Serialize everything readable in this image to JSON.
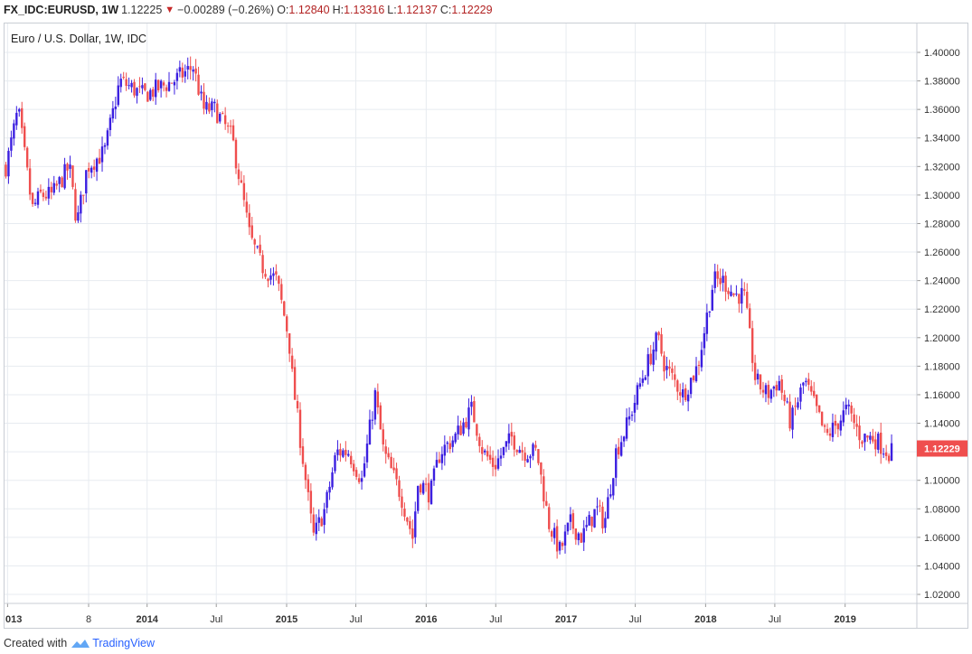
{
  "header": {
    "symbol": "FX_IDC:EURUSD, 1W",
    "last": "1.12225",
    "change": "−0.00289 (−0.26%)",
    "o_label": "O:",
    "o_value": "1.12840",
    "h_label": "H:",
    "h_value": "1.13316",
    "l_label": "L:",
    "l_value": "1.12137",
    "c_label": "C:",
    "c_value": "1.12229"
  },
  "footer": {
    "created_with": "Created with",
    "brand": "TradingView"
  },
  "colors": {
    "up": "#3b1fe0",
    "down": "#ef4e4e",
    "grid": "#e7ebf0",
    "price_tag": "#ef4e4e"
  },
  "chart_data": {
    "type": "candlestick",
    "title": "Euro / U.S. Dollar, 1W, IDC",
    "ylim": [
      1.01,
      1.41
    ],
    "y_ticks": [
      "1.40000",
      "1.38000",
      "1.36000",
      "1.34000",
      "1.32000",
      "1.30000",
      "1.28000",
      "1.26000",
      "1.24000",
      "1.22000",
      "1.20000",
      "1.18000",
      "1.16000",
      "1.14000",
      "1.12000",
      "1.10000",
      "1.08000",
      "1.06000",
      "1.04000",
      "1.02000"
    ],
    "x_tick_labels": [
      "013",
      "8",
      "2014",
      "Jul",
      "2015",
      "Jul",
      "2016",
      "Jul",
      "2017",
      "Jul",
      "2018",
      "Jul",
      "2019"
    ],
    "x_tick_dates": [
      "2013-01-01",
      "2013-08-01",
      "2014-01-01",
      "2014-07-01",
      "2015-01-01",
      "2015-07-01",
      "2016-01-01",
      "2016-07-01",
      "2017-01-01",
      "2017-07-01",
      "2018-01-01",
      "2018-07-01",
      "2019-01-01"
    ],
    "x_range": [
      "2012-12-24",
      "2019-04-30"
    ],
    "last_price": "1.12229",
    "grid": true,
    "path_dates": [
      "2013-01-01",
      "2013-02-01",
      "2013-03-10",
      "2013-04-01",
      "2013-05-01",
      "2013-06-15",
      "2013-07-05",
      "2013-08-01",
      "2013-09-15",
      "2013-10-25",
      "2013-12-27",
      "2014-03-15",
      "2014-05-05",
      "2014-06-01",
      "2014-07-01",
      "2014-08-15",
      "2014-10-01",
      "2014-11-01",
      "2014-12-10",
      "2015-01-10",
      "2015-01-20",
      "2015-03-15",
      "2015-04-15",
      "2015-05-15",
      "2015-06-15",
      "2015-07-20",
      "2015-08-24",
      "2015-09-15",
      "2015-10-30",
      "2015-11-30",
      "2015-12-15",
      "2016-01-15",
      "2016-02-10",
      "2016-03-20",
      "2016-05-03",
      "2016-06-01",
      "2016-07-01",
      "2016-08-15",
      "2016-09-15",
      "2016-10-20",
      "2016-11-20",
      "2016-12-20",
      "2017-01-15",
      "2017-02-15",
      "2017-03-25",
      "2017-04-15",
      "2017-05-15",
      "2017-06-15",
      "2017-07-20",
      "2017-09-01",
      "2017-09-20",
      "2017-11-07",
      "2017-12-15",
      "2018-01-25",
      "2018-02-20",
      "2018-03-20",
      "2018-04-15",
      "2018-05-15",
      "2018-06-15",
      "2018-07-15",
      "2018-08-15",
      "2018-09-20",
      "2018-10-20",
      "2018-11-15",
      "2018-12-15",
      "2019-01-10",
      "2019-02-15",
      "2019-03-20",
      "2019-04-26"
    ],
    "path_values": [
      1.32,
      1.36,
      1.29,
      1.3,
      1.3,
      1.32,
      1.28,
      1.32,
      1.33,
      1.38,
      1.37,
      1.38,
      1.39,
      1.36,
      1.36,
      1.34,
      1.27,
      1.25,
      1.24,
      1.2,
      1.17,
      1.06,
      1.08,
      1.12,
      1.12,
      1.1,
      1.16,
      1.12,
      1.09,
      1.06,
      1.1,
      1.09,
      1.12,
      1.13,
      1.15,
      1.12,
      1.11,
      1.13,
      1.12,
      1.12,
      1.07,
      1.05,
      1.07,
      1.06,
      1.08,
      1.07,
      1.12,
      1.14,
      1.17,
      1.2,
      1.18,
      1.16,
      1.18,
      1.24,
      1.24,
      1.23,
      1.23,
      1.17,
      1.16,
      1.17,
      1.14,
      1.17,
      1.15,
      1.13,
      1.14,
      1.15,
      1.13,
      1.13,
      1.12
    ]
  }
}
